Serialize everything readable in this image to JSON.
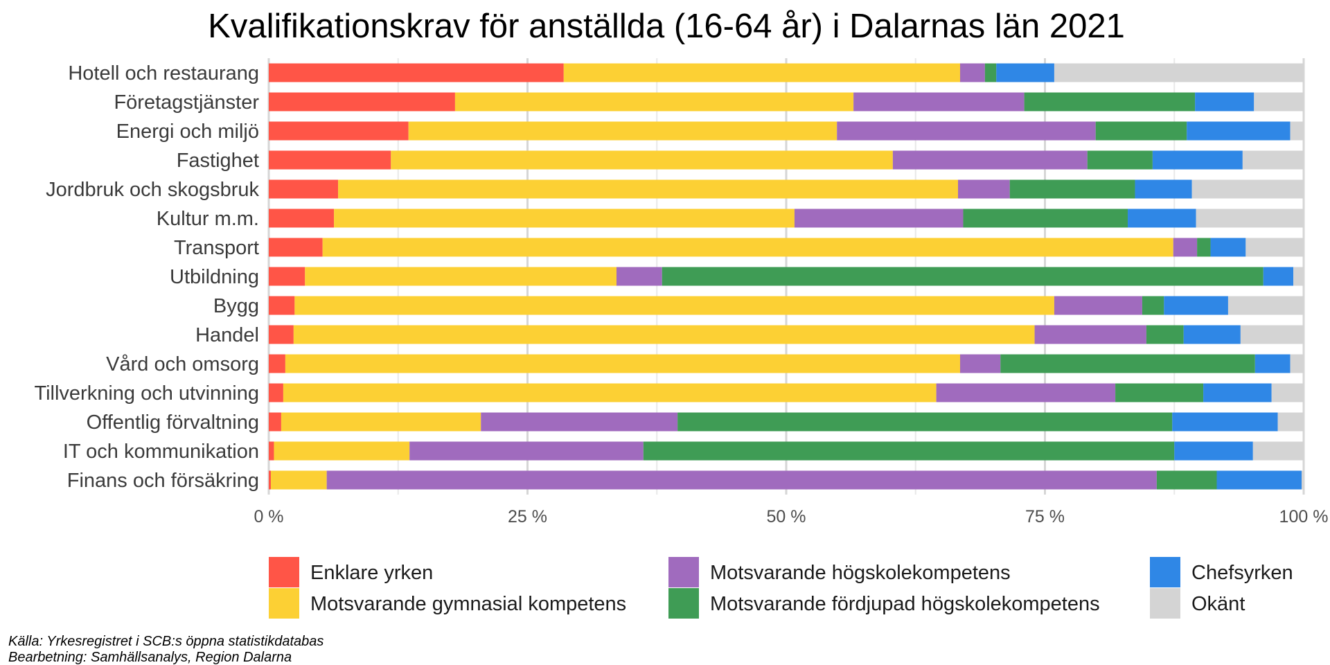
{
  "chart_data": {
    "type": "bar",
    "orientation": "horizontal",
    "stacked": true,
    "title": "Kvalifikationskrav för anställda (16-64 år) i Dalarnas län 2021",
    "xlim": [
      0,
      100
    ],
    "x_ticks": [
      0,
      25,
      50,
      75,
      100
    ],
    "x_tick_labels": [
      "0 %",
      "25 %",
      "50 %",
      "75 %",
      "100 %"
    ],
    "grid": true,
    "legend_position": "bottom",
    "categories": [
      "Hotell och restaurang",
      "Företagstjänster",
      "Energi och miljö",
      "Fastighet",
      "Jordbruk och skogsbruk",
      "Kultur m.m.",
      "Transport",
      "Utbildning",
      "Bygg",
      "Handel",
      "Vård och omsorg",
      "Tillverkning och utvinning",
      "Offentlig förvaltning",
      "IT och kommunikation",
      "Finans och försäkring"
    ],
    "series": [
      {
        "name": "Enklare yrken",
        "color": "#ff5547",
        "values": [
          28.5,
          18.0,
          13.5,
          11.8,
          6.7,
          6.3,
          5.2,
          3.5,
          2.5,
          2.4,
          1.6,
          1.4,
          1.2,
          0.5,
          0.2
        ]
      },
      {
        "name": "Motsvarande gymnasial kompetens",
        "color": "#fcd034",
        "values": [
          38.3,
          38.5,
          41.4,
          48.5,
          59.9,
          44.5,
          82.2,
          30.1,
          73.4,
          71.6,
          65.2,
          63.1,
          19.3,
          13.1,
          5.4
        ]
      },
      {
        "name": "Motsvarande högskolekompetens",
        "color": "#a06bbe",
        "values": [
          2.4,
          16.5,
          25.0,
          18.8,
          5.0,
          16.3,
          2.3,
          4.4,
          8.5,
          10.8,
          3.9,
          17.3,
          19.0,
          22.6,
          80.2
        ]
      },
      {
        "name": "Motsvarande fördjupad högskolekompetens",
        "color": "#3f9c55",
        "values": [
          1.1,
          16.5,
          8.8,
          6.3,
          12.1,
          15.9,
          1.3,
          58.1,
          2.1,
          3.6,
          24.6,
          8.5,
          47.8,
          51.3,
          5.8
        ]
      },
      {
        "name": "Chefsyrken",
        "color": "#2f87e6",
        "values": [
          5.6,
          5.7,
          10.0,
          8.7,
          5.5,
          6.6,
          3.4,
          2.9,
          6.2,
          5.5,
          3.4,
          6.6,
          10.2,
          7.6,
          8.2
        ]
      },
      {
        "name": "Okänt",
        "color": "#d4d4d4",
        "values": [
          24.1,
          4.8,
          1.3,
          5.9,
          10.8,
          10.4,
          5.6,
          1.0,
          7.3,
          6.1,
          1.3,
          3.1,
          2.5,
          4.9,
          0.2
        ]
      }
    ],
    "legend_order": [
      "Enklare yrken",
      "Motsvarande gymnasial kompetens",
      "Motsvarande högskolekompetens",
      "Motsvarande fördjupad högskolekompetens",
      "Chefsyrken",
      "Okänt"
    ],
    "caption_lines": [
      "Källa: Yrkesregistret i SCB:s öppna statistikdatabas",
      "Bearbetning: Samhällsanalys, Region Dalarna"
    ]
  }
}
